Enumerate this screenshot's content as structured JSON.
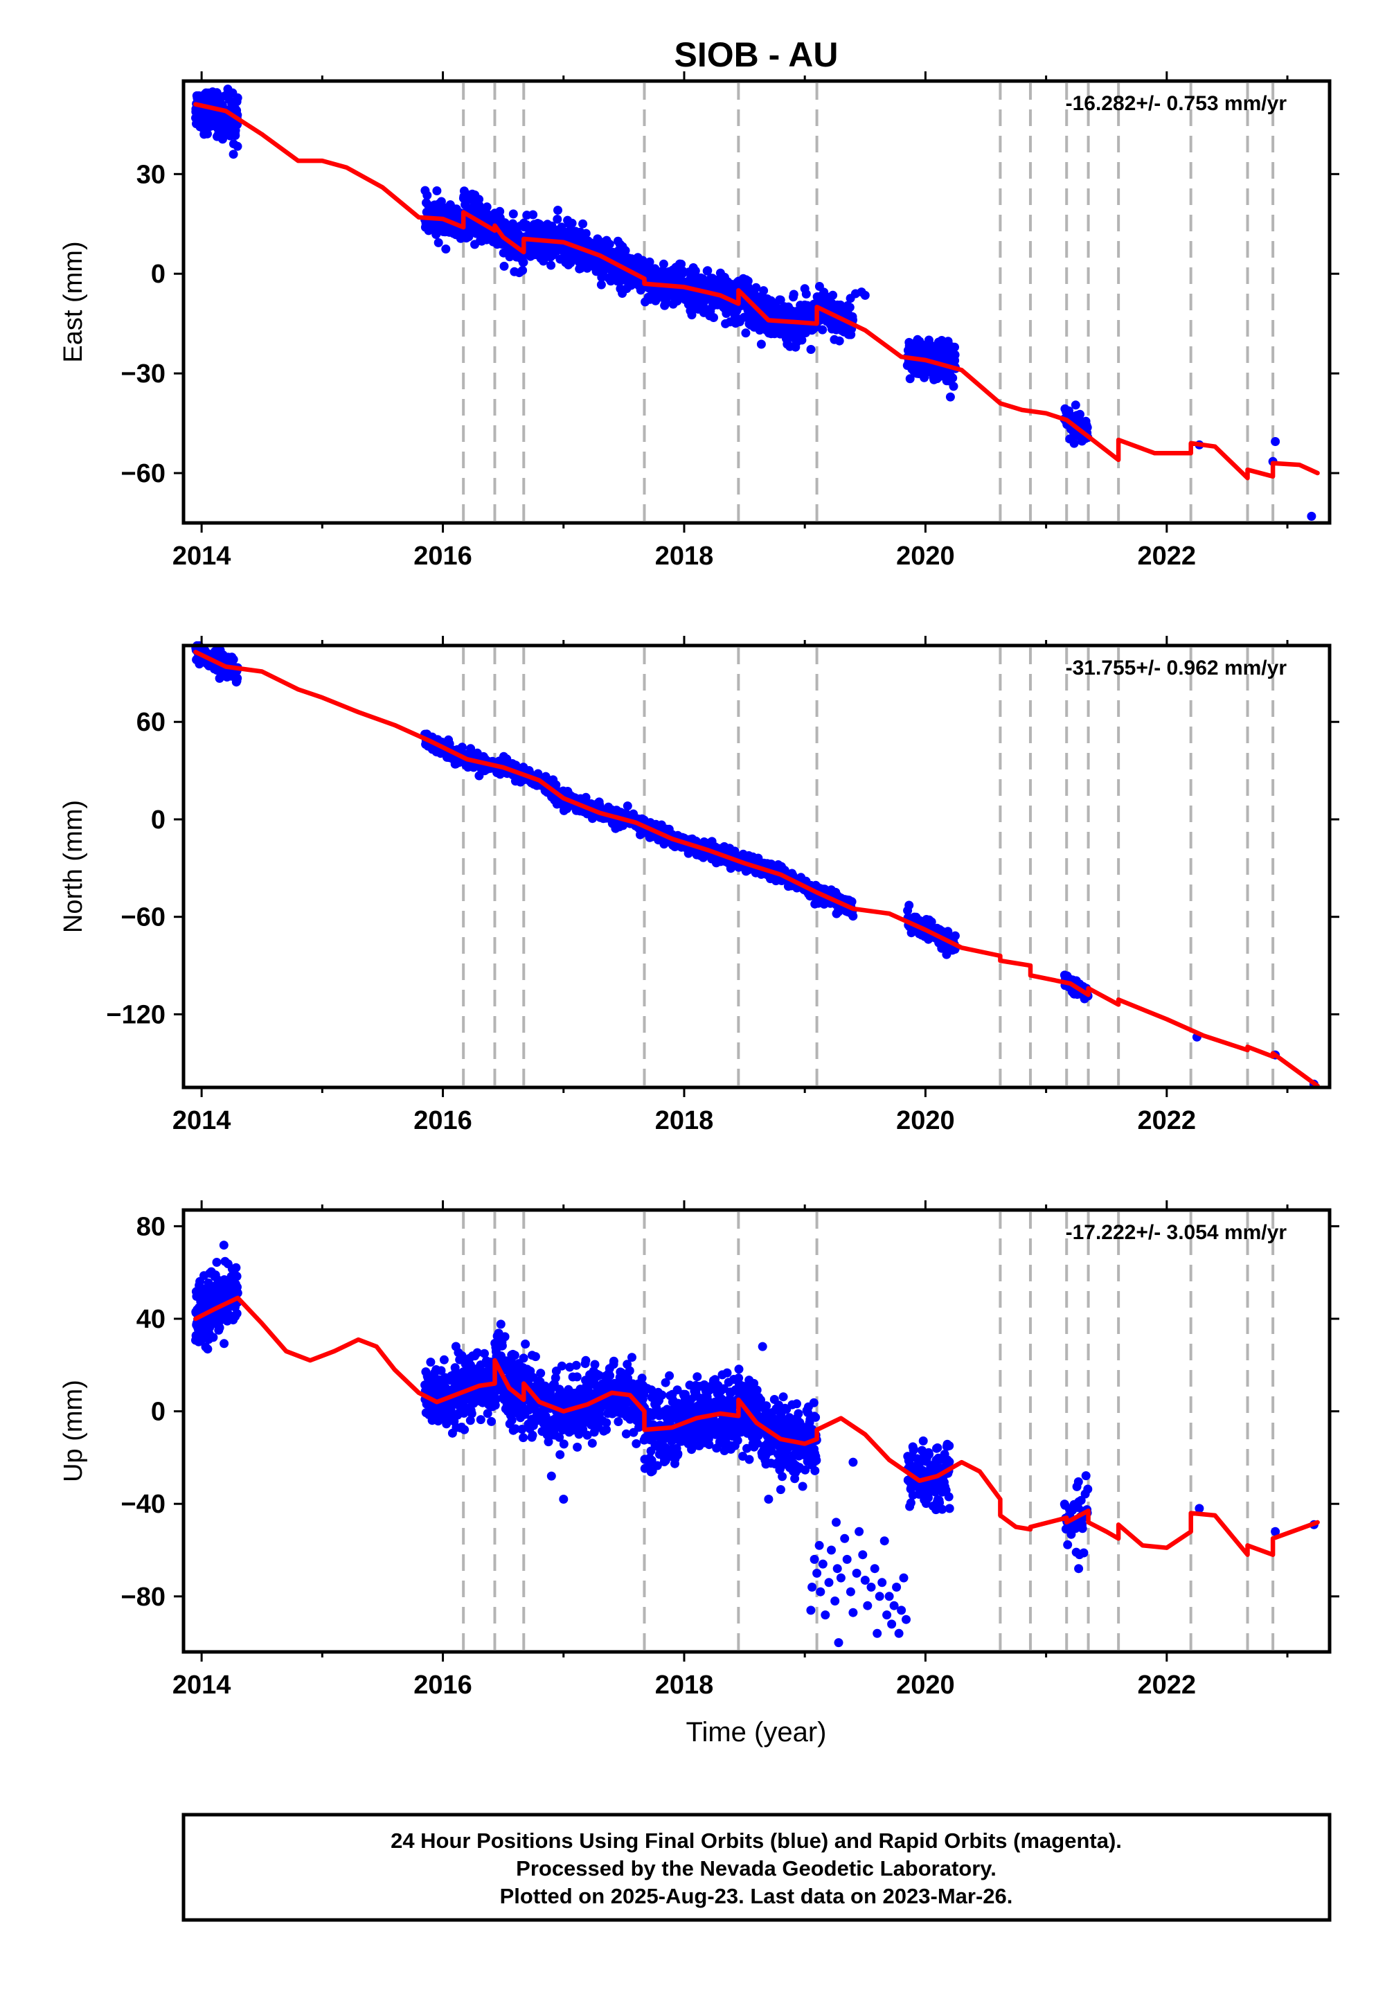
{
  "title": "SIOB - AU",
  "xlabel": "Time (year)",
  "footer": {
    "line1": "24 Hour Positions Using Final Orbits (blue) and Rapid Orbits (magenta).",
    "line2": "Processed by the Nevada Geodetic Laboratory.",
    "line3": "Plotted on 2025-Aug-23. Last data on 2023-Mar-26."
  },
  "colors": {
    "final": "#0000ff",
    "model": "#ff0000",
    "steps": "#b4b4b4",
    "frame": "#000000"
  },
  "chart_data": [
    {
      "type": "scatter",
      "ylabel": "East (mm)",
      "rate": "-16.282+/- 0.753 mm/yr",
      "xlim": [
        2013.85,
        2023.35
      ],
      "ylim": [
        -75,
        58
      ],
      "xticks": [
        2014,
        2016,
        2018,
        2020,
        2022
      ],
      "xtick_labels": [
        "2014",
        "2016",
        "2018",
        "2020",
        "2022"
      ],
      "yticks": [
        30,
        0,
        -30,
        -60
      ],
      "ytick_labels": [
        "30",
        "0",
        "−30",
        "−60"
      ],
      "step_epochs": [
        2016.17,
        2016.43,
        2016.67,
        2017.67,
        2018.45,
        2019.1,
        2020.62,
        2020.87,
        2021.17,
        2021.35,
        2021.6,
        2022.2,
        2022.67,
        2022.88
      ],
      "model": {
        "x": [
          2013.95,
          2014.2,
          2014.5,
          2014.8,
          2015.0,
          2015.2,
          2015.5,
          2015.8,
          2016.0,
          2016.17,
          2016.17,
          2016.43,
          2016.43,
          2016.5,
          2016.67,
          2016.67,
          2017.0,
          2017.3,
          2017.67,
          2017.67,
          2018.0,
          2018.3,
          2018.45,
          2018.45,
          2018.7,
          2019.1,
          2019.1,
          2019.5,
          2019.8,
          2020.0,
          2020.3,
          2020.62,
          2020.8,
          2021.0,
          2021.17,
          2021.35,
          2021.35,
          2021.6,
          2021.6,
          2021.9,
          2022.2,
          2022.2,
          2022.4,
          2022.67,
          2022.67,
          2022.88,
          2022.88,
          2023.1,
          2023.25
        ],
        "y": [
          51,
          49,
          42,
          34,
          34,
          32,
          26,
          17,
          16.5,
          14,
          18.5,
          13,
          14.5,
          11,
          6.5,
          10.5,
          9.5,
          5.5,
          -1.5,
          -3,
          -4,
          -6.5,
          -9,
          -5,
          -14,
          -15,
          -10,
          -17,
          -25,
          -26,
          -29,
          -39,
          -41,
          -42,
          -44,
          -49,
          -49,
          -56,
          -50,
          -54,
          -54,
          -51,
          -52,
          -61.5,
          -59,
          -61,
          -57,
          -57.5,
          -60
        ]
      },
      "segments": [
        {
          "x0": 2013.95,
          "x1": 2014.3,
          "n": 260,
          "sigma": 3.0,
          "yfrom": 50,
          "yto": 46
        },
        {
          "x0": 2015.85,
          "x1": 2016.17,
          "n": 120,
          "sigma": 3.0
        },
        {
          "x0": 2016.17,
          "x1": 2016.43,
          "n": 110,
          "sigma": 3.0
        },
        {
          "x0": 2016.43,
          "x1": 2016.67,
          "n": 100,
          "sigma": 3.0
        },
        {
          "x0": 2016.67,
          "x1": 2017.67,
          "n": 450,
          "sigma": 3.0
        },
        {
          "x0": 2017.67,
          "x1": 2018.45,
          "n": 380,
          "sigma": 3.0
        },
        {
          "x0": 2018.45,
          "x1": 2019.1,
          "n": 300,
          "sigma": 3.2
        },
        {
          "x0": 2019.1,
          "x1": 2019.4,
          "n": 120,
          "sigma": 3.0
        },
        {
          "x0": 2019.85,
          "x1": 2020.25,
          "n": 200,
          "sigma": 3.0
        },
        {
          "x0": 2021.15,
          "x1": 2021.35,
          "n": 45,
          "sigma": 2.5
        }
      ],
      "extra_points": [
        {
          "x": 2019.42,
          "y": -6
        },
        {
          "x": 2019.47,
          "y": -5.5
        },
        {
          "x": 2019.5,
          "y": -6.5
        },
        {
          "x": 2019.0,
          "y": -4.5
        },
        {
          "x": 2022.27,
          "y": -51.5
        },
        {
          "x": 2022.9,
          "y": -50.5
        },
        {
          "x": 2022.88,
          "y": -56.5
        },
        {
          "x": 2023.2,
          "y": -73
        }
      ]
    },
    {
      "type": "scatter",
      "ylabel": "North (mm)",
      "rate": "-31.755+/- 0.962 mm/yr",
      "xlim": [
        2013.85,
        2023.35
      ],
      "ylim": [
        -165,
        107
      ],
      "xticks": [
        2014,
        2016,
        2018,
        2020,
        2022
      ],
      "xtick_labels": [
        "2014",
        "2016",
        "2018",
        "2020",
        "2022"
      ],
      "yticks": [
        60,
        0,
        -60,
        -120
      ],
      "ytick_labels": [
        "60",
        "0",
        "−60",
        "−120"
      ],
      "step_epochs": [
        2016.17,
        2016.43,
        2016.67,
        2017.67,
        2018.45,
        2019.1,
        2020.62,
        2020.87,
        2021.17,
        2021.35,
        2021.6,
        2022.2,
        2022.67,
        2022.88
      ],
      "model": {
        "x": [
          2013.95,
          2014.2,
          2014.5,
          2014.8,
          2015.0,
          2015.3,
          2015.6,
          2015.9,
          2016.2,
          2016.5,
          2016.8,
          2017.0,
          2017.3,
          2017.6,
          2017.9,
          2018.2,
          2018.5,
          2018.8,
          2019.1,
          2019.4,
          2019.7,
          2020.0,
          2020.3,
          2020.62,
          2020.62,
          2020.87,
          2020.87,
          2021.2,
          2021.35,
          2021.35,
          2021.6,
          2021.6,
          2022.0,
          2022.3,
          2022.67,
          2022.67,
          2022.88,
          2022.88,
          2023.25
        ],
        "y": [
          103,
          94,
          91,
          80,
          75,
          66,
          58,
          48,
          37,
          32,
          24,
          13,
          4,
          -2,
          -12,
          -19,
          -27,
          -34,
          -45,
          -55,
          -58,
          -68,
          -79,
          -84,
          -87,
          -90,
          -96,
          -101,
          -108,
          -104,
          -114,
          -111,
          -123,
          -133,
          -142,
          -140,
          -146,
          -144,
          -164
        ]
      },
      "segments": [
        {
          "x0": 2013.95,
          "x1": 2014.3,
          "n": 170,
          "sigma": 3.0,
          "yfrom": 103,
          "yto": 92
        },
        {
          "x0": 2015.85,
          "x1": 2019.15,
          "n": 1100,
          "sigma": 2.5
        },
        {
          "x0": 2019.15,
          "x1": 2019.4,
          "n": 90,
          "sigma": 2.5
        },
        {
          "x0": 2019.85,
          "x1": 2020.25,
          "n": 160,
          "sigma": 2.8
        },
        {
          "x0": 2021.15,
          "x1": 2021.35,
          "n": 40,
          "sigma": 2.5
        }
      ],
      "extra_points": [
        {
          "x": 2022.25,
          "y": -134
        },
        {
          "x": 2022.9,
          "y": -145
        },
        {
          "x": 2023.22,
          "y": -163
        }
      ]
    },
    {
      "type": "scatter",
      "ylabel": "Up (mm)",
      "rate": "-17.222+/- 3.054 mm/yr",
      "xlim": [
        2013.85,
        2023.35
      ],
      "ylim": [
        -104,
        87
      ],
      "xticks": [
        2014,
        2016,
        2018,
        2020,
        2022
      ],
      "xtick_labels": [
        "2014",
        "2016",
        "2018",
        "2020",
        "2022"
      ],
      "yticks": [
        80,
        40,
        0,
        -40,
        -80
      ],
      "ytick_labels": [
        "80",
        "40",
        "0",
        "−40",
        "−80"
      ],
      "step_epochs": [
        2016.17,
        2016.43,
        2016.67,
        2017.67,
        2018.45,
        2019.1,
        2020.62,
        2020.87,
        2021.17,
        2021.35,
        2021.6,
        2022.2,
        2022.67,
        2022.88
      ],
      "model": {
        "x": [
          2013.95,
          2014.1,
          2014.3,
          2014.5,
          2014.7,
          2014.9,
          2015.1,
          2015.3,
          2015.45,
          2015.6,
          2015.8,
          2015.95,
          2016.1,
          2016.3,
          2016.43,
          2016.43,
          2016.55,
          2016.67,
          2016.67,
          2016.8,
          2017.0,
          2017.2,
          2017.4,
          2017.55,
          2017.67,
          2017.67,
          2017.9,
          2018.1,
          2018.3,
          2018.45,
          2018.45,
          2018.6,
          2018.8,
          2019.0,
          2019.1,
          2019.1,
          2019.3,
          2019.5,
          2019.7,
          2019.95,
          2020.1,
          2020.3,
          2020.45,
          2020.62,
          2020.62,
          2020.75,
          2020.87,
          2020.87,
          2021.17,
          2021.17,
          2021.35,
          2021.35,
          2021.5,
          2021.6,
          2021.6,
          2021.8,
          2022.0,
          2022.2,
          2022.2,
          2022.4,
          2022.67,
          2022.67,
          2022.88,
          2022.88,
          2023.25
        ],
        "y": [
          40,
          44,
          49,
          38,
          26,
          22,
          26,
          31,
          28,
          18,
          8,
          4,
          7,
          11,
          12,
          22,
          10,
          5,
          12,
          4,
          0,
          3,
          8,
          7,
          0,
          -8,
          -7,
          -3,
          -1,
          -2,
          5,
          -5,
          -12,
          -14,
          -12,
          -8,
          -3,
          -10,
          -21,
          -30,
          -28,
          -22,
          -26,
          -38,
          -45,
          -50,
          -51,
          -50,
          -46,
          -48,
          -43,
          -48,
          -52,
          -55,
          -49,
          -58,
          -59,
          -52,
          -44,
          -45,
          -62,
          -58,
          -62,
          -55,
          -48
        ]
      },
      "segments": [
        {
          "x0": 2013.95,
          "x1": 2014.3,
          "n": 260,
          "sigma": 7.0,
          "yfrom": 42,
          "yto": 52
        },
        {
          "x0": 2015.85,
          "x1": 2016.43,
          "n": 280,
          "sigma": 7.0
        },
        {
          "x0": 2016.43,
          "x1": 2016.67,
          "n": 130,
          "sigma": 8.0
        },
        {
          "x0": 2016.67,
          "x1": 2017.67,
          "n": 460,
          "sigma": 7.0
        },
        {
          "x0": 2017.67,
          "x1": 2018.45,
          "n": 380,
          "sigma": 8.0
        },
        {
          "x0": 2018.45,
          "x1": 2019.1,
          "n": 300,
          "sigma": 7.5
        },
        {
          "x0": 2019.85,
          "x1": 2020.2,
          "n": 160,
          "sigma": 6.0
        },
        {
          "x0": 2021.15,
          "x1": 2021.35,
          "n": 45,
          "sigma": 7.0
        }
      ],
      "extra_points": [
        {
          "x": 2019.08,
          "y": -64
        },
        {
          "x": 2019.1,
          "y": -70
        },
        {
          "x": 2019.12,
          "y": -58
        },
        {
          "x": 2019.13,
          "y": -78
        },
        {
          "x": 2019.15,
          "y": -66
        },
        {
          "x": 2019.17,
          "y": -88
        },
        {
          "x": 2019.2,
          "y": -74
        },
        {
          "x": 2019.22,
          "y": -60
        },
        {
          "x": 2019.25,
          "y": -82
        },
        {
          "x": 2019.27,
          "y": -68
        },
        {
          "x": 2019.28,
          "y": -100
        },
        {
          "x": 2019.3,
          "y": -72
        },
        {
          "x": 2019.33,
          "y": -55
        },
        {
          "x": 2019.35,
          "y": -64
        },
        {
          "x": 2019.38,
          "y": -78
        },
        {
          "x": 2019.4,
          "y": -87
        },
        {
          "x": 2019.43,
          "y": -70
        },
        {
          "x": 2019.45,
          "y": -52
        },
        {
          "x": 2019.48,
          "y": -62
        },
        {
          "x": 2019.5,
          "y": -73
        },
        {
          "x": 2019.52,
          "y": -84
        },
        {
          "x": 2019.55,
          "y": -76
        },
        {
          "x": 2019.58,
          "y": -68
        },
        {
          "x": 2019.6,
          "y": -96
        },
        {
          "x": 2019.62,
          "y": -80
        },
        {
          "x": 2019.64,
          "y": -74
        },
        {
          "x": 2019.66,
          "y": -56
        },
        {
          "x": 2019.68,
          "y": -88
        },
        {
          "x": 2019.7,
          "y": -80
        },
        {
          "x": 2019.72,
          "y": -92
        },
        {
          "x": 2019.74,
          "y": -84
        },
        {
          "x": 2019.76,
          "y": -76
        },
        {
          "x": 2019.78,
          "y": -96
        },
        {
          "x": 2019.8,
          "y": -86
        },
        {
          "x": 2019.82,
          "y": -72
        },
        {
          "x": 2019.84,
          "y": -90
        },
        {
          "x": 2019.05,
          "y": -86
        },
        {
          "x": 2019.06,
          "y": -76
        },
        {
          "x": 2019.26,
          "y": -48
        },
        {
          "x": 2019.4,
          "y": -22
        },
        {
          "x": 2017.0,
          "y": -38
        },
        {
          "x": 2016.9,
          "y": -28
        },
        {
          "x": 2018.7,
          "y": -38
        },
        {
          "x": 2018.65,
          "y": 28
        },
        {
          "x": 2020.2,
          "y": -42
        },
        {
          "x": 2021.27,
          "y": -68
        },
        {
          "x": 2022.27,
          "y": -42
        },
        {
          "x": 2022.9,
          "y": -52
        },
        {
          "x": 2023.22,
          "y": -49
        }
      ]
    }
  ]
}
